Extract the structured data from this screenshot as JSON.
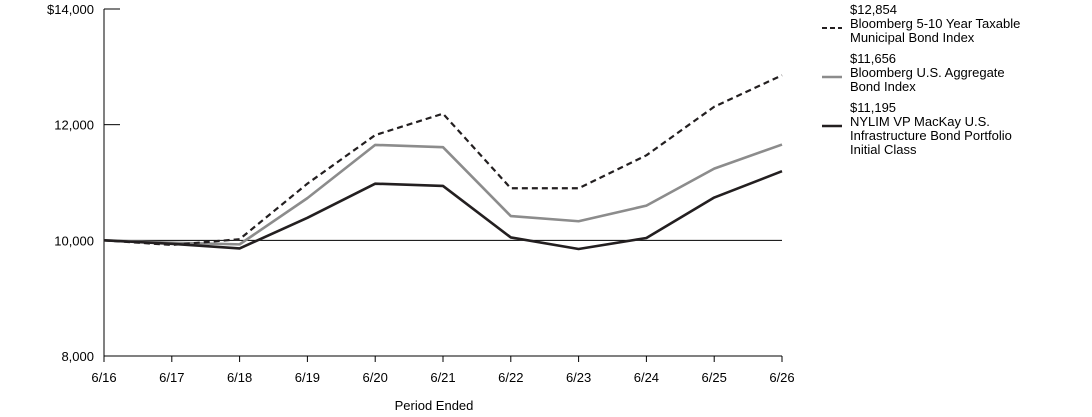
{
  "chart_data": {
    "type": "line",
    "xlabel": "Period Ended",
    "ylabel": "",
    "categories": [
      "6/16",
      "6/17",
      "6/18",
      "6/19",
      "6/20",
      "6/21",
      "6/22",
      "6/23",
      "6/24",
      "6/25",
      "6/26"
    ],
    "ylim": [
      8000,
      14000
    ],
    "yticks": [
      {
        "value": 8000,
        "label": "8,000"
      },
      {
        "value": 10000,
        "label": "10,000"
      },
      {
        "value": 12000,
        "label": "12,000"
      },
      {
        "value": 14000,
        "label": "$14,000"
      }
    ],
    "reference_line": 10000,
    "series": [
      {
        "name": "Bloomberg 5-10 Year Taxable Municipal Bond Index",
        "name_lines": [
          "Bloomberg 5-10 Year Taxable",
          "Municipal Bond Index"
        ],
        "end_label": "$12,854",
        "color": "#231f20",
        "style": "dashed",
        "values": [
          10000,
          9920,
          10020,
          10980,
          11820,
          12190,
          10900,
          10900,
          11470,
          12310,
          12854
        ]
      },
      {
        "name": "Bloomberg U.S. Aggregate Bond Index",
        "name_lines": [
          "Bloomberg U.S. Aggregate",
          "Bond Index"
        ],
        "end_label": "$11,656",
        "color": "#8c8c8c",
        "style": "solid",
        "values": [
          10000,
          9960,
          9930,
          10730,
          11650,
          11610,
          10420,
          10330,
          10600,
          11240,
          11656
        ]
      },
      {
        "name": "NYLIM VP MacKay U.S. Infrastructure Bond Portfolio Initial Class",
        "name_lines": [
          "NYLIM VP MacKay U.S.",
          "Infrastructure Bond Portfolio",
          "Initial Class"
        ],
        "end_label": "$11,195",
        "color": "#231f20",
        "style": "solid",
        "values": [
          10000,
          9940,
          9860,
          10390,
          10980,
          10940,
          10050,
          9850,
          10040,
          10740,
          11195
        ]
      }
    ],
    "legend_position": "right",
    "grid": false
  }
}
